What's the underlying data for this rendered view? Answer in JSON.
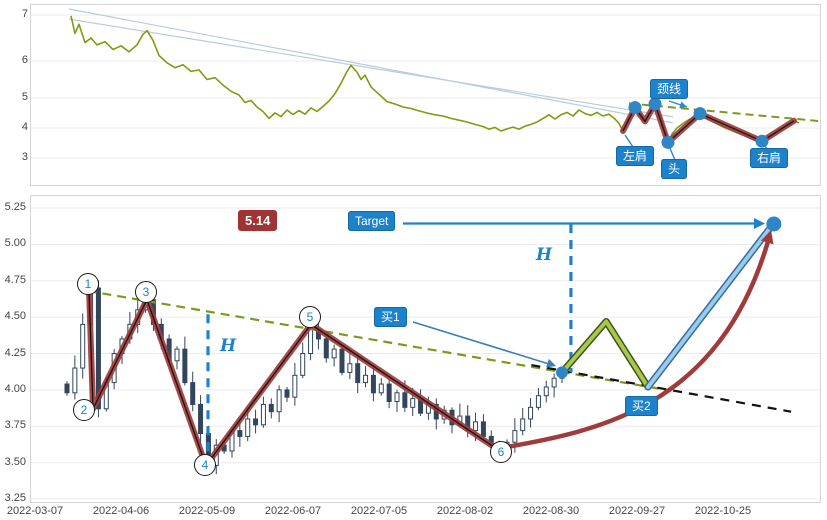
{
  "top_chart": {
    "y_ticks": [
      "7",
      "6",
      "5",
      "4",
      "3"
    ],
    "labels": {
      "neckline": "颈线",
      "left_shoulder": "左肩",
      "head": "头",
      "right_shoulder": "右肩"
    }
  },
  "bottom_chart": {
    "y_ticks": [
      "5.25",
      "5.00",
      "4.75",
      "4.50",
      "4.25",
      "4.00",
      "3.75",
      "3.50",
      "3.25"
    ],
    "x_ticks": [
      "2022-03-07",
      "2022-04-06",
      "2022-05-09",
      "2022-06-07",
      "2022-07-05",
      "2022-08-02",
      "2022-08-30",
      "2022-09-27",
      "2022-10-25"
    ],
    "wave_labels": [
      "1",
      "2",
      "3",
      "4",
      "5",
      "6"
    ],
    "labels": {
      "price_target": "5.14",
      "target": "Target",
      "buy1": "买1",
      "buy2": "买2",
      "h_upper": "H",
      "h_lower": "H"
    }
  },
  "colors": {
    "accent_blue": "#1d82cc",
    "dot_blue": "#2d86c6",
    "annotation_red": "#a03b3b",
    "trend_green": "#7c9a1e",
    "price_line": "#7e9c10",
    "forecast_green": "#a9c94a",
    "forecast_blue": "#9ecae8",
    "candle": "#31465c"
  },
  "chart_data": [
    {
      "type": "line",
      "panel": "top",
      "title": "",
      "ylim": [
        3,
        7.3
      ],
      "y_ticks": [
        7,
        6,
        5,
        4,
        3
      ],
      "x_unit": "px-offset-in-panel (no x labels shown)",
      "series_name": "price",
      "points": [
        [
          40,
          6.98
        ],
        [
          44,
          6.6
        ],
        [
          48,
          6.8
        ],
        [
          54,
          6.4
        ],
        [
          60,
          6.5
        ],
        [
          66,
          6.35
        ],
        [
          74,
          6.42
        ],
        [
          82,
          6.25
        ],
        [
          90,
          6.33
        ],
        [
          98,
          6.2
        ],
        [
          106,
          6.35
        ],
        [
          112,
          6.58
        ],
        [
          116,
          6.66
        ],
        [
          122,
          6.45
        ],
        [
          128,
          6.12
        ],
        [
          136,
          5.95
        ],
        [
          144,
          5.82
        ],
        [
          152,
          5.9
        ],
        [
          160,
          5.72
        ],
        [
          168,
          5.76
        ],
        [
          176,
          5.5
        ],
        [
          184,
          5.55
        ],
        [
          192,
          5.35
        ],
        [
          200,
          5.18
        ],
        [
          208,
          5.08
        ],
        [
          214,
          4.85
        ],
        [
          220,
          4.92
        ],
        [
          226,
          4.7
        ],
        [
          232,
          4.55
        ],
        [
          238,
          4.32
        ],
        [
          244,
          4.5
        ],
        [
          250,
          4.38
        ],
        [
          256,
          4.6
        ],
        [
          262,
          4.45
        ],
        [
          268,
          4.58
        ],
        [
          274,
          4.46
        ],
        [
          280,
          4.67
        ],
        [
          286,
          4.55
        ],
        [
          292,
          4.72
        ],
        [
          298,
          4.9
        ],
        [
          304,
          5.12
        ],
        [
          310,
          5.4
        ],
        [
          316,
          5.72
        ],
        [
          320,
          5.88
        ],
        [
          326,
          5.7
        ],
        [
          330,
          5.5
        ],
        [
          334,
          5.62
        ],
        [
          340,
          5.3
        ],
        [
          348,
          5.1
        ],
        [
          356,
          4.88
        ],
        [
          364,
          4.8
        ],
        [
          372,
          4.7
        ],
        [
          380,
          4.65
        ],
        [
          388,
          4.57
        ],
        [
          396,
          4.5
        ],
        [
          404,
          4.44
        ],
        [
          412,
          4.4
        ],
        [
          420,
          4.32
        ],
        [
          428,
          4.26
        ],
        [
          436,
          4.2
        ],
        [
          444,
          4.12
        ],
        [
          452,
          4.05
        ],
        [
          458,
          3.96
        ],
        [
          464,
          4.02
        ],
        [
          470,
          3.9
        ],
        [
          476,
          3.97
        ],
        [
          482,
          4.03
        ],
        [
          488,
          3.96
        ],
        [
          494,
          4.06
        ],
        [
          500,
          4.12
        ],
        [
          506,
          4.2
        ],
        [
          512,
          4.32
        ],
        [
          518,
          4.44
        ],
        [
          524,
          4.3
        ],
        [
          530,
          4.44
        ],
        [
          536,
          4.52
        ],
        [
          542,
          4.4
        ],
        [
          548,
          4.6
        ],
        [
          554,
          4.48
        ],
        [
          560,
          4.42
        ],
        [
          566,
          4.52
        ],
        [
          572,
          4.4
        ],
        [
          578,
          4.46
        ],
        [
          584,
          4.3
        ],
        [
          588,
          4.15
        ],
        [
          592,
          3.9
        ],
        [
          598,
          4.35
        ],
        [
          604,
          4.68
        ],
        [
          610,
          4.3
        ],
        [
          614,
          4.22
        ],
        [
          620,
          4.6
        ],
        [
          624,
          4.8
        ],
        [
          630,
          4.3
        ],
        [
          634,
          3.9
        ],
        [
          637,
          3.52
        ],
        [
          641,
          3.8
        ],
        [
          646,
          4.0
        ],
        [
          652,
          4.15
        ],
        [
          658,
          4.28
        ],
        [
          664,
          4.4
        ],
        [
          669,
          4.48
        ],
        [
          675,
          4.35
        ],
        [
          681,
          4.22
        ],
        [
          687,
          4.12
        ],
        [
          693,
          4.02
        ],
        [
          699,
          3.94
        ],
        [
          705,
          3.86
        ],
        [
          711,
          3.78
        ],
        [
          717,
          3.7
        ],
        [
          723,
          3.62
        ],
        [
          728,
          3.58
        ],
        [
          731,
          3.56
        ],
        [
          735,
          3.62
        ],
        [
          740,
          3.72
        ],
        [
          745,
          3.83
        ],
        [
          750,
          3.95
        ],
        [
          755,
          4.05
        ],
        [
          760,
          4.15
        ],
        [
          764,
          4.24
        ],
        [
          768,
          4.17
        ]
      ],
      "channel_lines": [
        [
          [
            38,
            7.13
          ],
          [
            642,
            4.17
          ]
        ],
        [
          [
            38,
            6.91
          ],
          [
            642,
            4.37
          ]
        ]
      ],
      "neckline_dashed": [
        [
          598,
          4.82
        ],
        [
          792,
          4.22
        ]
      ],
      "pattern_zigzag": [
        [
          592,
          3.9
        ],
        [
          604,
          4.68
        ],
        [
          614,
          4.22
        ],
        [
          624,
          4.8
        ],
        [
          637,
          3.52
        ],
        [
          669,
          4.48
        ],
        [
          731,
          3.56
        ],
        [
          763,
          4.24
        ]
      ],
      "pivot_dots": [
        [
          604,
          4.68
        ],
        [
          624,
          4.8
        ],
        [
          637,
          3.52
        ],
        [
          669,
          4.48
        ],
        [
          731,
          3.56
        ]
      ]
    },
    {
      "type": "candlestick",
      "panel": "bottom",
      "ylim": [
        3.25,
        5.25
      ],
      "y_ticks": [
        5.25,
        5.0,
        4.75,
        4.5,
        4.25,
        4.0,
        3.75,
        3.5,
        3.25
      ],
      "x_tick_dates": [
        "2022-03-07",
        "2022-04-06",
        "2022-05-09",
        "2022-06-07",
        "2022-07-05",
        "2022-08-02",
        "2022-08-30",
        "2022-09-27",
        "2022-10-25"
      ],
      "t_unit": "x-axis tick index (0 = 2022-03-07, 1 tick ≈ 1 month)",
      "closes": [
        3.98,
        4.15,
        4.45,
        4.7,
        3.87,
        4.05,
        4.25,
        4.35,
        4.45,
        4.55,
        4.62,
        4.45,
        4.35,
        4.2,
        4.28,
        4.05,
        3.9,
        3.7,
        3.48,
        3.62,
        3.58,
        3.72,
        3.68,
        3.8,
        3.76,
        3.9,
        3.85,
        4.0,
        3.95,
        4.1,
        4.25,
        4.42,
        4.35,
        4.22,
        4.28,
        4.12,
        4.18,
        4.05,
        4.1,
        3.98,
        4.04,
        3.92,
        3.98,
        3.88,
        3.94,
        3.84,
        3.9,
        3.8,
        3.86,
        3.76,
        3.82,
        3.72,
        3.78,
        3.68,
        3.62,
        3.57,
        3.64,
        3.72,
        3.8,
        3.88,
        3.96,
        4.02,
        4.08,
        4.12
      ],
      "waves": [
        {
          "label": "1",
          "t": 0.616,
          "price": 4.7
        },
        {
          "label": "2",
          "t": 0.663,
          "price": 3.87
        },
        {
          "label": "3",
          "t": 1.29,
          "price": 4.62
        },
        {
          "label": "4",
          "t": 1.977,
          "price": 3.48
        },
        {
          "label": "5",
          "t": 3.198,
          "price": 4.45
        },
        {
          "label": "6",
          "t": 5.42,
          "price": 3.57
        }
      ],
      "buys": [
        {
          "label": "买1",
          "t": 6.116,
          "price": 4.12
        },
        {
          "label": "买2",
          "t": 7.116,
          "price": 4.02
        }
      ],
      "forecast_peak": {
        "t": 6.63,
        "price": 4.47
      },
      "target": {
        "label": "Target",
        "t": 8.58,
        "price": 5.14
      },
      "trendline_dashed_green": [
        [
          0.6,
          4.68
        ],
        [
          7.33,
          4.0
        ]
      ],
      "support_dashed_black": [
        [
          5.76,
          4.17
        ],
        [
          8.78,
          3.85
        ]
      ],
      "h_measures": [
        {
          "t": 2.0,
          "top": 4.52,
          "bottom": 3.53
        },
        {
          "t": 6.22,
          "top": 5.14,
          "bottom": 4.12
        }
      ]
    }
  ]
}
